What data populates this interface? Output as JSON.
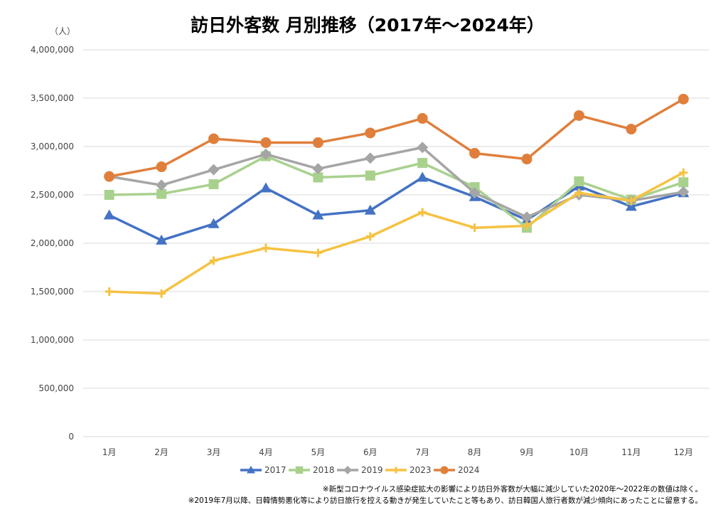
{
  "chart_data": {
    "type": "line",
    "title": "訪日外客数 月別推移（2017年～2024年）",
    "yunit": "（人）",
    "ylim": [
      0,
      4000000
    ],
    "yticks": [
      0,
      500000,
      1000000,
      1500000,
      2000000,
      2500000,
      3000000,
      3500000,
      4000000
    ],
    "ytick_labels": [
      "0",
      "500,000",
      "1,000,000",
      "1,500,000",
      "2,000,000",
      "2,500,000",
      "3,000,000",
      "3,500,000",
      "4,000,000"
    ],
    "grid": true,
    "legend_position": "bottom",
    "categories": [
      "1月",
      "2月",
      "3月",
      "4月",
      "5月",
      "6月",
      "7月",
      "8月",
      "9月",
      "10月",
      "11月",
      "12月"
    ],
    "series": [
      {
        "name": "2017",
        "color": "#4472C4",
        "marker": "triangle",
        "values": [
          2290000,
          2030000,
          2200000,
          2570000,
          2290000,
          2340000,
          2680000,
          2480000,
          2240000,
          2590000,
          2380000,
          2520000
        ]
      },
      {
        "name": "2018",
        "color": "#A9D18E",
        "marker": "square",
        "values": [
          2500000,
          2510000,
          2610000,
          2900000,
          2680000,
          2700000,
          2830000,
          2580000,
          2160000,
          2640000,
          2450000,
          2630000
        ]
      },
      {
        "name": "2019",
        "color": "#A5A5A5",
        "marker": "diamond",
        "values": [
          2690000,
          2600000,
          2760000,
          2920000,
          2770000,
          2880000,
          2990000,
          2520000,
          2270000,
          2500000,
          2440000,
          2530000
        ]
      },
      {
        "name": "2023",
        "color": "#F5C242",
        "marker": "plus",
        "values": [
          1500000,
          1480000,
          1820000,
          1950000,
          1900000,
          2070000,
          2320000,
          2160000,
          2180000,
          2520000,
          2440000,
          2730000
        ]
      },
      {
        "name": "2024",
        "color": "#E07F3C",
        "marker": "circle",
        "values": [
          2690000,
          2790000,
          3080000,
          3040000,
          3040000,
          3140000,
          3290000,
          2930000,
          2870000,
          3320000,
          3180000,
          3490000
        ]
      }
    ],
    "notes": [
      "※新型コロナウイルス感染症拡大の影響により訪日外客数が大幅に減少していた2020年～2022年の数値は除く。",
      "※2019年7月以降、日韓情勢悪化等により訪日旅行を控える動きが発生していたこと等もあり、訪日韓国人旅行者数が減少傾向にあったことに留意する。"
    ]
  }
}
